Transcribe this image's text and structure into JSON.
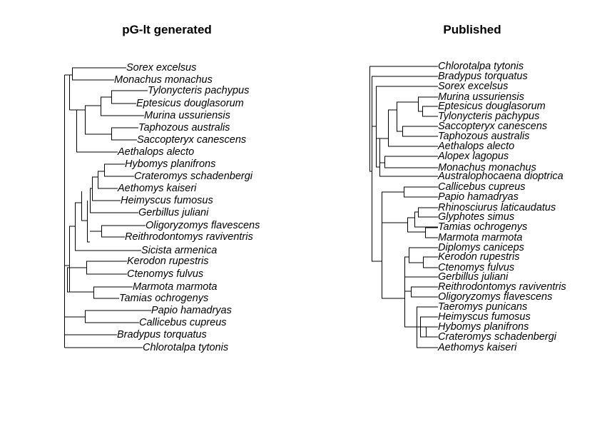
{
  "figure": {
    "left_panel": {
      "title": "pG-lt generated",
      "leaves": [
        "Sorex excelsus",
        "Monachus monachus",
        "Tylonycteris pachypus",
        "Eptesicus douglasorum",
        "Murina ussuriensis",
        "Taphozous australis",
        "Saccopteryx canescens",
        "Aethalops alecto",
        "Hybomys planifrons",
        "Crateromys schadenbergi",
        "Aethomys kaiseri",
        "Heimyscus fumosus",
        "Gerbillus juliani",
        "Oligoryzomys flavescens",
        "Reithrodontomys raviventris",
        "Sicista armenica",
        "Kerodon rupestris",
        "Ctenomys fulvus",
        "Marmota marmota",
        "Tamias ochrogenys",
        "Papio hamadryas",
        "Callicebus cupreus",
        "Bradypus torquatus",
        "Chlorotalpa tytonis"
      ]
    },
    "right_panel": {
      "title": "Published",
      "leaves": [
        "Chlorotalpa tytonis",
        "Bradypus torquatus",
        "Sorex excelsus",
        "Murina ussuriensis",
        "Eptesicus douglasorum",
        "Tylonycteris pachypus",
        "Saccopteryx canescens",
        "Taphozous australis",
        "Aethalops alecto",
        "Alopex lagopus",
        "Monachus monachus",
        "Australophocaena dioptrica",
        "Callicebus cupreus",
        "Papio hamadryas",
        "Rhinosciurus laticaudatus",
        "Glyphotes simus",
        "Tamias ochrogenys",
        "Marmota marmota",
        "Diplomys caniceps",
        "Kerodon rupestris",
        "Ctenomys fulvus",
        "Gerbillus juliani",
        "Reithrodontomys raviventris",
        "Oligoryzomys flavescens",
        "Taeromys punicans",
        "Heimyscus fumosus",
        "Hybomys planifrons",
        "Crateromys schadenbergi",
        "Aethomys kaiseri"
      ]
    }
  }
}
